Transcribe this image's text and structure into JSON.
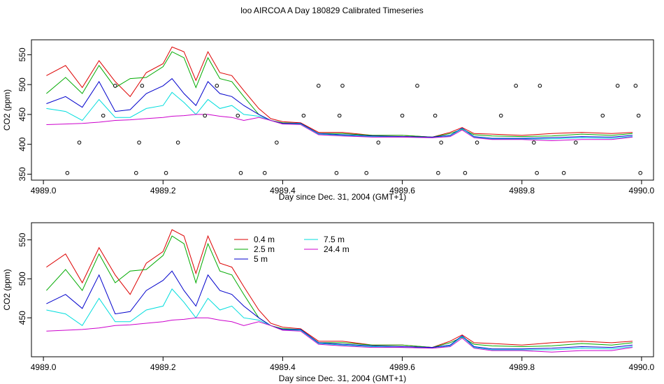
{
  "figure": {
    "title": "loo AIRCOA A  Day 180829  Calibrated Timeseries"
  },
  "colors": {
    "0.4 m": "#dd0000",
    "2.5 m": "#00aa00",
    "5 m": "#0000cc",
    "7.5 m": "#00dddd",
    "24.4 m": "#cc00cc"
  },
  "chart_data": [
    {
      "type": "line",
      "title": "",
      "xlabel": "Day since Dec. 31, 2004 (GMT+1)",
      "ylabel": "CO2 (ppm)",
      "xlim": [
        4988.98,
        4990.02
      ],
      "ylim": [
        340,
        575
      ],
      "xticks": [
        4989.0,
        4989.2,
        4989.4,
        4989.6,
        4989.8,
        4990.0
      ],
      "xtick_labels": [
        "4989.0",
        "4989.2",
        "4989.4",
        "4989.6",
        "4989.8",
        "4990.0"
      ],
      "yticks": [
        350,
        400,
        450,
        500,
        550
      ],
      "ytick_labels": [
        "350",
        "400",
        "450",
        "500",
        "550"
      ],
      "grid": false,
      "legend": "none",
      "x": [
        4989.005,
        4989.037,
        4989.065,
        4989.093,
        4989.12,
        4989.145,
        4989.172,
        4989.2,
        4989.215,
        4989.235,
        4989.255,
        4989.275,
        4989.295,
        4989.315,
        4989.335,
        4989.36,
        4989.38,
        4989.4,
        4989.43,
        4989.46,
        4989.5,
        4989.55,
        4989.6,
        4989.65,
        4989.68,
        4989.7,
        4989.72,
        4989.75,
        4989.8,
        4989.85,
        4989.9,
        4989.95,
        4989.985
      ],
      "series": [
        {
          "name": "0.4 m",
          "values": [
            515,
            532,
            495,
            540,
            505,
            480,
            520,
            535,
            563,
            555,
            507,
            555,
            520,
            515,
            490,
            460,
            443,
            438,
            436,
            420,
            420,
            415,
            415,
            412,
            420,
            428,
            418,
            417,
            415,
            418,
            420,
            418,
            420
          ]
        },
        {
          "name": "2.5 m",
          "values": [
            485,
            512,
            485,
            532,
            495,
            510,
            512,
            530,
            555,
            545,
            495,
            545,
            510,
            505,
            480,
            450,
            440,
            436,
            435,
            418,
            418,
            415,
            415,
            412,
            418,
            425,
            416,
            414,
            413,
            414,
            417,
            415,
            418
          ]
        },
        {
          "name": "5 m",
          "values": [
            468,
            480,
            462,
            505,
            455,
            458,
            485,
            498,
            510,
            485,
            465,
            505,
            485,
            480,
            465,
            450,
            440,
            435,
            435,
            418,
            416,
            414,
            413,
            412,
            415,
            427,
            413,
            410,
            410,
            411,
            413,
            412,
            415
          ]
        },
        {
          "name": "7.5 m",
          "values": [
            460,
            455,
            440,
            475,
            445,
            445,
            460,
            465,
            487,
            470,
            450,
            475,
            460,
            465,
            450,
            447,
            440,
            434,
            434,
            417,
            415,
            413,
            412,
            411,
            414,
            426,
            412,
            409,
            409,
            409,
            411,
            410,
            413
          ]
        },
        {
          "name": "24.4 m",
          "values": [
            433,
            434,
            435,
            437,
            440,
            441,
            443,
            445,
            447,
            448,
            450,
            450,
            447,
            445,
            440,
            445,
            440,
            434,
            433,
            416,
            414,
            412,
            412,
            411,
            413,
            424,
            411,
            408,
            408,
            406,
            408,
            408,
            412
          ]
        }
      ],
      "points": {
        "x": [
          4989.04,
          4989.06,
          4989.1,
          4989.12,
          4989.155,
          4989.16,
          4989.165,
          4989.205,
          4989.225,
          4989.27,
          4989.29,
          4989.325,
          4989.33,
          4989.37,
          4989.39,
          4989.435,
          4989.46,
          4989.49,
          4989.495,
          4989.5,
          4989.54,
          4989.56,
          4989.6,
          4989.625,
          4989.655,
          4989.66,
          4989.665,
          4989.705,
          4989.725,
          4989.765,
          4989.79,
          4989.82,
          4989.825,
          4989.83,
          4989.87,
          4989.89,
          4989.935,
          4989.96,
          4989.99,
          4989.995,
          4989.998
        ],
        "y": [
          352,
          403,
          448,
          498,
          352,
          403,
          498,
          352,
          403,
          448,
          498,
          448,
          352,
          352,
          403,
          448,
          498,
          352,
          448,
          498,
          352,
          403,
          448,
          498,
          448,
          352,
          403,
          352,
          403,
          448,
          498,
          403,
          352,
          498,
          352,
          403,
          448,
          498,
          498,
          448,
          352
        ]
      }
    },
    {
      "type": "line",
      "title": "",
      "xlabel": "Day since Dec. 31, 2004 (GMT+1)",
      "ylabel": "CO2 (ppm)",
      "xlim": [
        4988.98,
        4990.02
      ],
      "ylim": [
        400,
        572
      ],
      "xticks": [
        4989.0,
        4989.2,
        4989.4,
        4989.6,
        4989.8,
        4990.0
      ],
      "xtick_labels": [
        "4989.0",
        "4989.2",
        "4989.4",
        "4989.6",
        "4989.8",
        "4990.0"
      ],
      "yticks": [
        450,
        500,
        550
      ],
      "ytick_labels": [
        "450",
        "500",
        "550"
      ],
      "grid": false,
      "legend": "top-left",
      "x": [
        4989.005,
        4989.037,
        4989.065,
        4989.093,
        4989.12,
        4989.145,
        4989.172,
        4989.2,
        4989.215,
        4989.235,
        4989.255,
        4989.275,
        4989.295,
        4989.315,
        4989.335,
        4989.36,
        4989.38,
        4989.4,
        4989.43,
        4989.46,
        4989.5,
        4989.55,
        4989.6,
        4989.65,
        4989.68,
        4989.7,
        4989.72,
        4989.75,
        4989.8,
        4989.85,
        4989.9,
        4989.95,
        4989.985
      ],
      "series": [
        {
          "name": "0.4 m",
          "values": [
            515,
            532,
            495,
            540,
            505,
            480,
            520,
            535,
            563,
            555,
            507,
            555,
            520,
            515,
            490,
            460,
            443,
            438,
            436,
            420,
            420,
            415,
            415,
            412,
            420,
            428,
            418,
            417,
            415,
            418,
            420,
            418,
            420
          ]
        },
        {
          "name": "2.5 m",
          "values": [
            485,
            512,
            485,
            532,
            495,
            510,
            512,
            530,
            555,
            545,
            495,
            545,
            510,
            505,
            480,
            450,
            440,
            436,
            435,
            418,
            418,
            415,
            415,
            412,
            418,
            425,
            416,
            414,
            413,
            414,
            417,
            415,
            418
          ]
        },
        {
          "name": "5 m",
          "values": [
            468,
            480,
            462,
            505,
            455,
            458,
            485,
            498,
            510,
            485,
            465,
            505,
            485,
            480,
            465,
            450,
            440,
            435,
            435,
            418,
            416,
            414,
            413,
            412,
            415,
            427,
            413,
            410,
            410,
            411,
            413,
            412,
            415
          ]
        },
        {
          "name": "7.5 m",
          "values": [
            460,
            455,
            440,
            475,
            445,
            445,
            460,
            465,
            487,
            470,
            450,
            475,
            460,
            465,
            450,
            447,
            440,
            434,
            434,
            417,
            415,
            413,
            412,
            411,
            414,
            426,
            412,
            409,
            409,
            409,
            411,
            410,
            413
          ]
        },
        {
          "name": "24.4 m",
          "values": [
            433,
            434,
            435,
            437,
            440,
            441,
            443,
            445,
            447,
            448,
            450,
            450,
            447,
            445,
            440,
            445,
            440,
            434,
            433,
            416,
            414,
            412,
            412,
            411,
            413,
            424,
            411,
            408,
            408,
            406,
            408,
            408,
            412
          ]
        }
      ]
    }
  ]
}
